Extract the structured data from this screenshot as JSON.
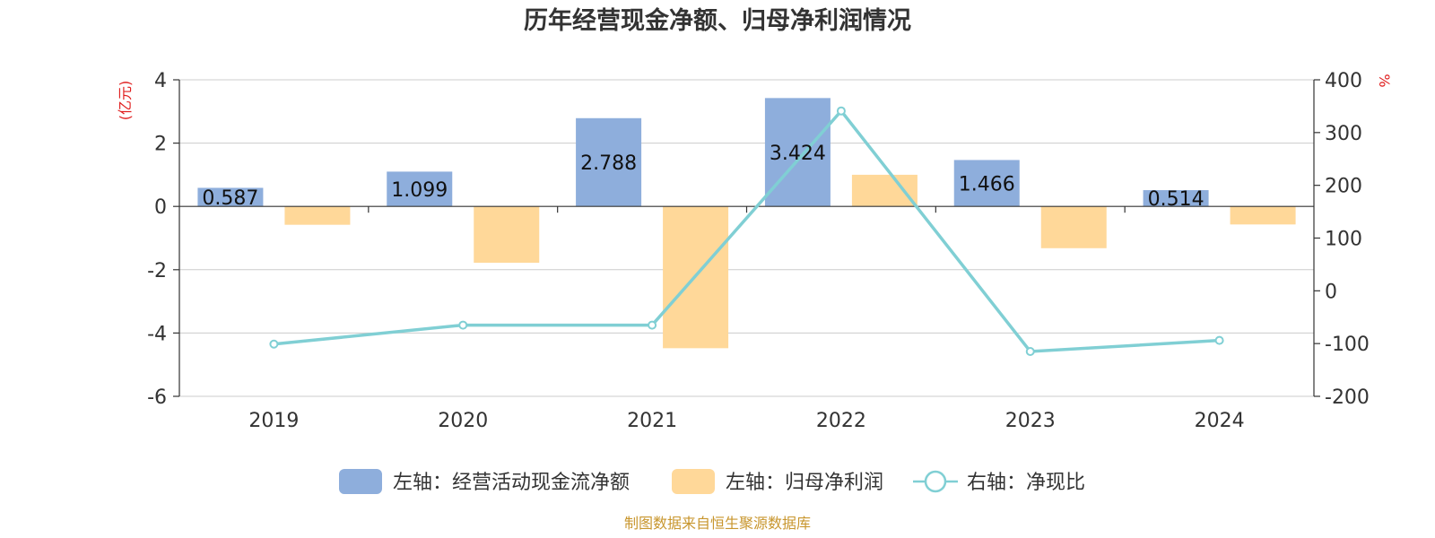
{
  "chart_data": {
    "type": "bar",
    "title": "历年经营现金净额、归母净利润情况",
    "categories": [
      "2019",
      "2020",
      "2021",
      "2022",
      "2023",
      "2024"
    ],
    "left_axis": {
      "unit": "(亿元)",
      "ylim": [
        -6,
        4
      ],
      "ticks": [
        "4",
        "2",
        "0",
        "-2",
        "-4",
        "-6"
      ]
    },
    "right_axis": {
      "unit": "%",
      "ylim": [
        -200,
        400
      ],
      "ticks": [
        "400",
        "300",
        "200",
        "100",
        "0",
        "-100",
        "-200"
      ]
    },
    "series": [
      {
        "name": "左轴：经营活动现金流净额",
        "type": "bar",
        "axis": "left",
        "color": "#8eaedc",
        "values": [
          0.587,
          1.099,
          2.788,
          3.424,
          1.466,
          0.514
        ],
        "labels": [
          "0.587",
          "1.099",
          "2.788",
          "3.424",
          "1.466",
          "0.514"
        ]
      },
      {
        "name": "左轴：归母净利润",
        "type": "bar",
        "axis": "left",
        "color": "#ffd899",
        "values": [
          -0.58,
          -1.78,
          -4.48,
          1.0,
          -1.32,
          -0.57
        ]
      },
      {
        "name": "右轴：净现比",
        "type": "line",
        "axis": "right",
        "color": "#80cfd4",
        "values": [
          -101,
          -65,
          -65,
          341,
          -115,
          -94
        ]
      }
    ],
    "grid": true,
    "legend": "bottom-center"
  },
  "source": "制图数据来自恒生聚源数据库"
}
